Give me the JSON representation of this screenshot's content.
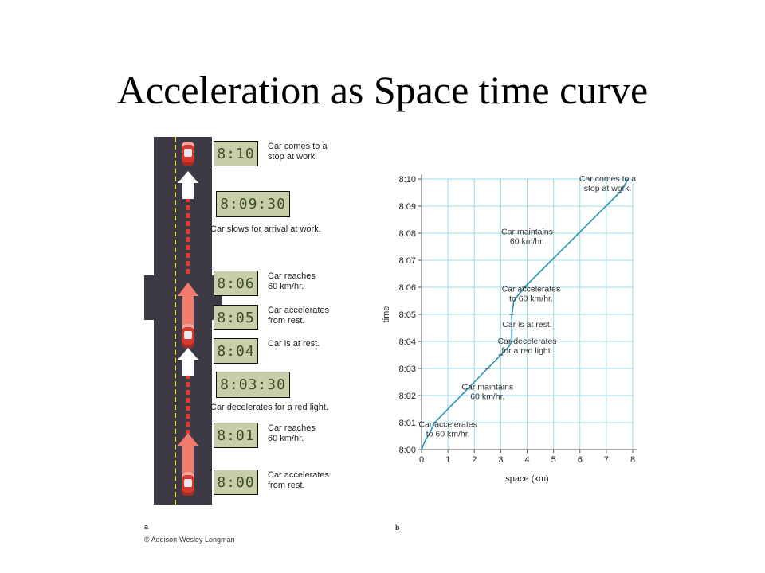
{
  "title": "Acceleration as Space time curve",
  "panel_a": {
    "label": "a",
    "copyright": "© Addison-Wesley Longman",
    "clocks": [
      {
        "time": "8:10",
        "caption": [
          "Car comes to a",
          "stop at work."
        ]
      },
      {
        "time": "8:09:30",
        "caption": [
          "Car slows for arrival at work."
        ]
      },
      {
        "time": "8:06",
        "caption": [
          "Car reaches",
          "60 km/hr."
        ]
      },
      {
        "time": "8:05",
        "caption": [
          "Car accelerates",
          "from rest."
        ]
      },
      {
        "time": "8:04",
        "caption": [
          "Car is at rest."
        ]
      },
      {
        "time": "8:03:30",
        "caption": [
          "Car decelerates for a red light."
        ]
      },
      {
        "time": "8:01",
        "caption": [
          "Car reaches",
          "60 km/hr."
        ]
      },
      {
        "time": "8:00",
        "caption": [
          "Car accelerates",
          "from rest."
        ]
      }
    ]
  },
  "panel_b": {
    "label": "b",
    "chart_data": {
      "type": "line",
      "xlabel": "space (km)",
      "ylabel": "time",
      "xlim": [
        0,
        8
      ],
      "ylim": [
        "8:00",
        "8:10"
      ],
      "x_ticks": [
        "0",
        "1",
        "2",
        "3",
        "4",
        "5",
        "6",
        "7",
        "8"
      ],
      "y_ticks": [
        "8:00",
        "8:01",
        "8:02",
        "8:03",
        "8:04",
        "8:05",
        "8:06",
        "8:07",
        "8:08",
        "8:09",
        "8:10"
      ],
      "grid": true,
      "line_color": "#1f93b8",
      "grid_color": "#9ed8ee",
      "series": [
        {
          "points": [
            {
              "x": 0,
              "y": "8:00"
            },
            {
              "x": 0.12,
              "y": "8:00:18"
            },
            {
              "x": 0.3,
              "y": "8:00:36"
            },
            {
              "x": 0.5,
              "y": "8:01"
            },
            {
              "x": 1.5,
              "y": "8:02"
            },
            {
              "x": 2.5,
              "y": "8:03"
            },
            {
              "x": 3.0,
              "y": "8:03:30"
            },
            {
              "x": 3.3,
              "y": "8:03:48"
            },
            {
              "x": 3.42,
              "y": "8:04"
            },
            {
              "x": 3.42,
              "y": "8:05"
            },
            {
              "x": 3.5,
              "y": "8:05:30"
            },
            {
              "x": 3.9,
              "y": "8:06"
            },
            {
              "x": 7.5,
              "y": "8:09:30"
            },
            {
              "x": 7.75,
              "y": "8:09:52"
            },
            {
              "x": 7.8,
              "y": "8:10"
            }
          ]
        }
      ],
      "annotations": [
        {
          "text": [
            "Car comes to a",
            "stop at work."
          ],
          "x": 7.05,
          "y": "8:09:55"
        },
        {
          "text": [
            "Car maintains",
            "60 km/hr."
          ],
          "x": 4.0,
          "y": "8:07:57"
        },
        {
          "text": [
            "Car accelerates",
            "to 60 km/hr."
          ],
          "x": 4.15,
          "y": "8:05:50"
        },
        {
          "text": [
            "Car is at rest."
          ],
          "x": 4.0,
          "y": "8:04:32"
        },
        {
          "text": [
            "Car decelerates",
            "for a red light."
          ],
          "x": 4.0,
          "y": "8:03:55"
        },
        {
          "text": [
            "Car maintains",
            "60 km/hr."
          ],
          "x": 2.5,
          "y": "8:02:13"
        },
        {
          "text": [
            "Car accelerates",
            "to 60 km/hr."
          ],
          "x": 1.0,
          "y": "8:00:50"
        }
      ]
    }
  }
}
